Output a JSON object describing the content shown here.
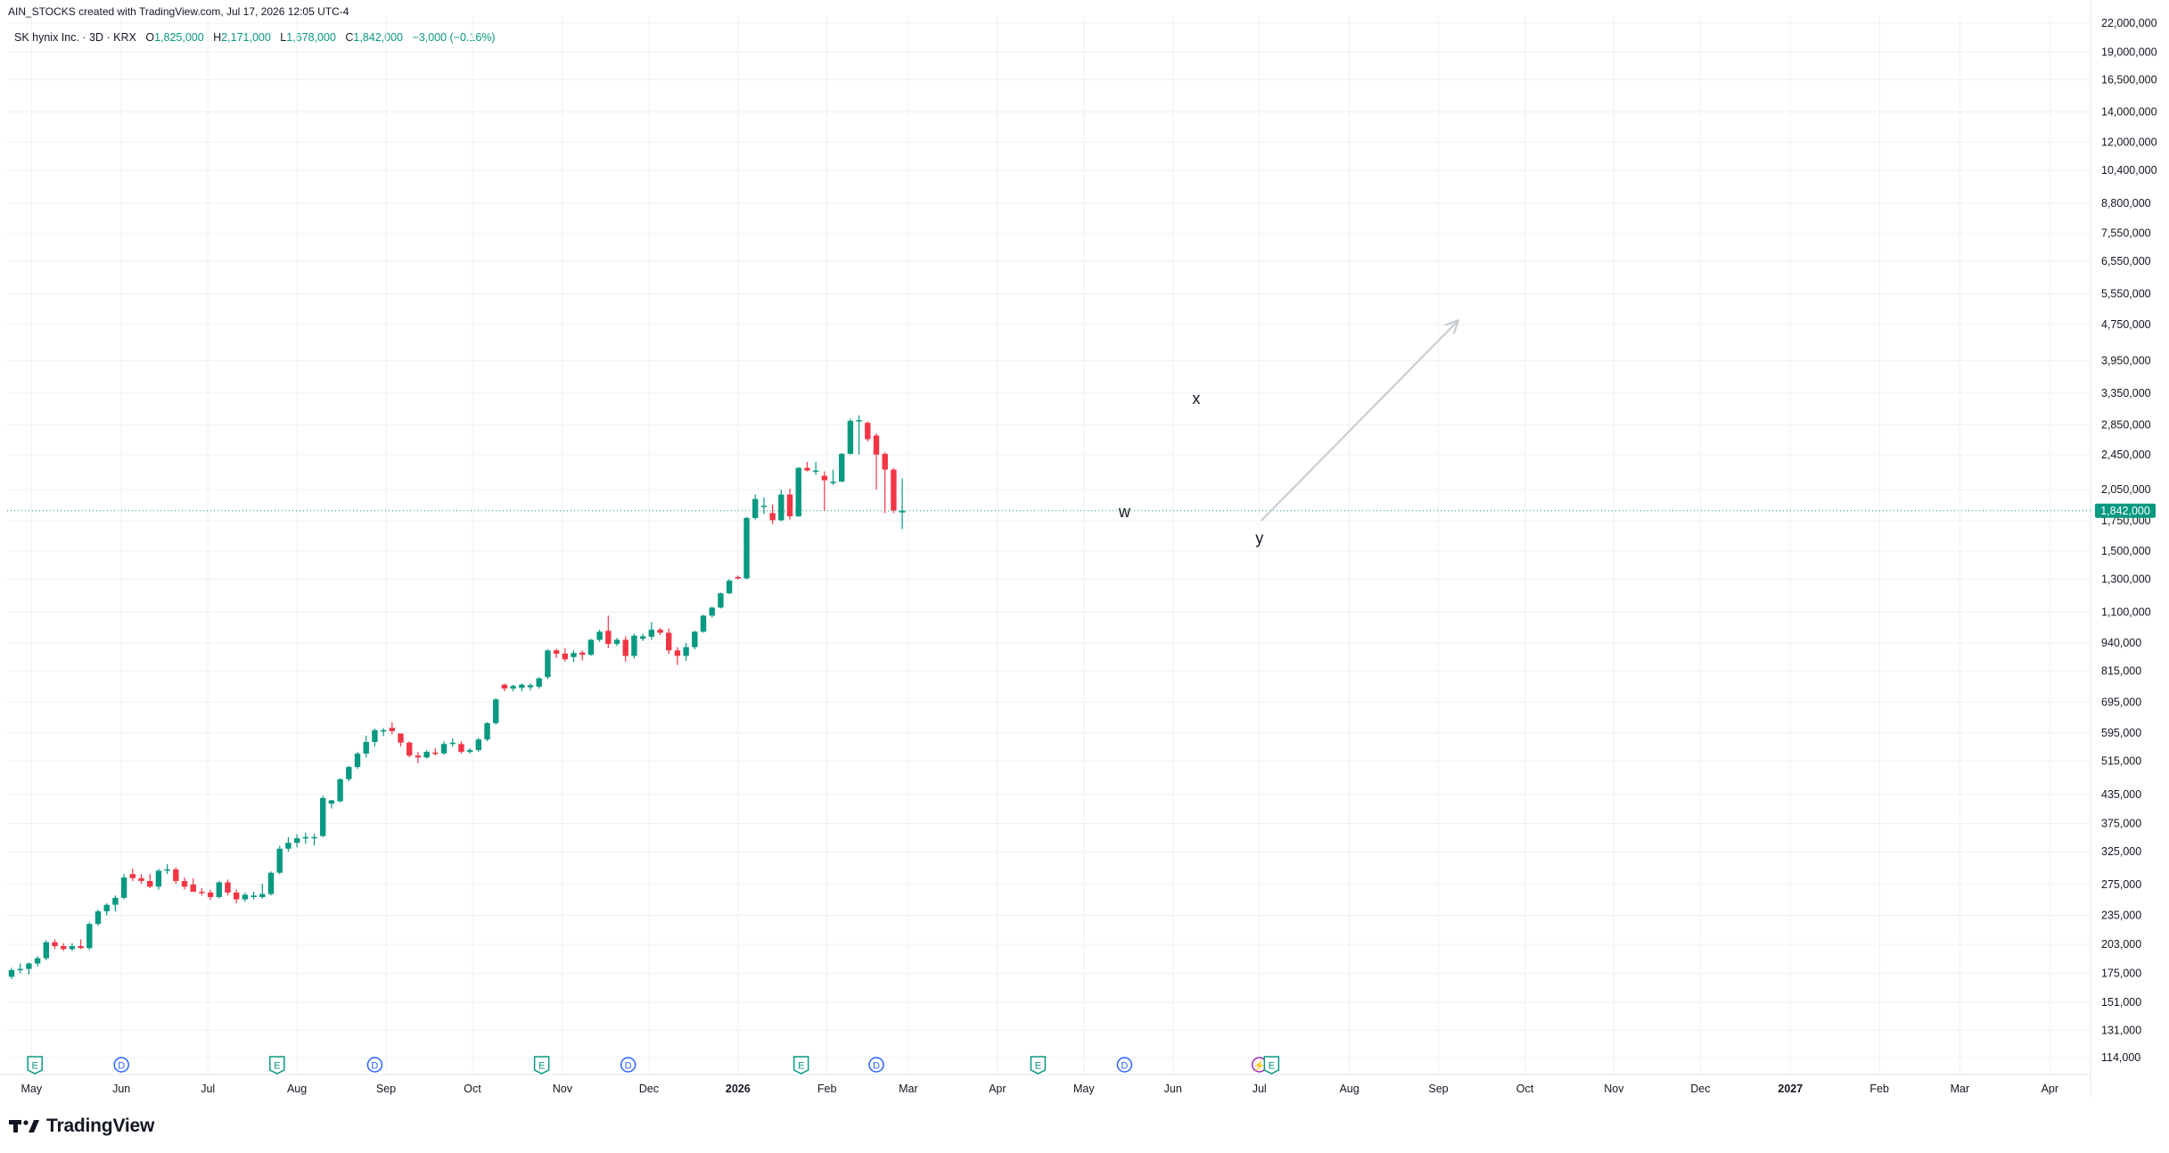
{
  "header": {
    "created_line": "AIN_STOCKS created with TradingView.com, Jul 17, 2026 12:05 UTC-4"
  },
  "legend": {
    "symbol": "SK hynix Inc. · 3D · KRX",
    "o_label": "O",
    "o_value": "1,825,000",
    "h_label": "H",
    "h_value": "2,171,000",
    "l_label": "L",
    "l_value": "1,678,000",
    "c_label": "C",
    "c_value": "1,842,000",
    "change": "−3,000 (−0.16%)"
  },
  "brand": {
    "name": "TradingView"
  },
  "colors": {
    "up": "#089981",
    "down": "#f23645",
    "grid": "#eef0f3",
    "axis_text": "#131722",
    "price_line": "#089981",
    "arrow": "#c5c9d0",
    "earnings": "#089981",
    "dividend": "#2962ff",
    "split": "#9c27b0"
  },
  "chart_data": {
    "type": "candlestick",
    "symbol": "SK hynix Inc.",
    "interval": "3D",
    "exchange": "KRX",
    "y_scale": "log",
    "ylim": [
      106000,
      23000000
    ],
    "grid": true,
    "y_ticks": [
      {
        "value": 22000000,
        "label": "22,000,000"
      },
      {
        "value": 19000000,
        "label": "19,000,000"
      },
      {
        "value": 16500000,
        "label": "16,500,000"
      },
      {
        "value": 14000000,
        "label": "14,000,000"
      },
      {
        "value": 12000000,
        "label": "12,000,000"
      },
      {
        "value": 10400000,
        "label": "10,400,000"
      },
      {
        "value": 8800000,
        "label": "8,800,000"
      },
      {
        "value": 7550000,
        "label": "7,550,000"
      },
      {
        "value": 6550000,
        "label": "6,550,000"
      },
      {
        "value": 5550000,
        "label": "5,550,000"
      },
      {
        "value": 4750000,
        "label": "4,750,000"
      },
      {
        "value": 3950000,
        "label": "3,950,000"
      },
      {
        "value": 3350000,
        "label": "3,350,000"
      },
      {
        "value": 2850000,
        "label": "2,850,000"
      },
      {
        "value": 2450000,
        "label": "2,450,000"
      },
      {
        "value": 2050000,
        "label": "2,050,000"
      },
      {
        "value": 1750000,
        "label": "1,750,000"
      },
      {
        "value": 1500000,
        "label": "1,500,000"
      },
      {
        "value": 1300000,
        "label": "1,300,000"
      },
      {
        "value": 1100000,
        "label": "1,100,000"
      },
      {
        "value": 940000,
        "label": "940,000"
      },
      {
        "value": 815000,
        "label": "815,000"
      },
      {
        "value": 695000,
        "label": "695,000"
      },
      {
        "value": 595000,
        "label": "595,000"
      },
      {
        "value": 515000,
        "label": "515,000"
      },
      {
        "value": 435000,
        "label": "435,000"
      },
      {
        "value": 375000,
        "label": "375,000"
      },
      {
        "value": 325000,
        "label": "325,000"
      },
      {
        "value": 275000,
        "label": "275,000"
      },
      {
        "value": 235000,
        "label": "235,000"
      },
      {
        "value": 203000,
        "label": "203,000"
      },
      {
        "value": 175000,
        "label": "175,000"
      },
      {
        "value": 151000,
        "label": "151,000"
      },
      {
        "value": 131000,
        "label": "131,000"
      },
      {
        "value": 114000,
        "label": "114,000"
      }
    ],
    "x_ticks": [
      {
        "i": 2.3,
        "label": "May"
      },
      {
        "i": 12.7,
        "label": "Jun"
      },
      {
        "i": 22.7,
        "label": "Jul"
      },
      {
        "i": 33.0,
        "label": "Aug"
      },
      {
        "i": 43.3,
        "label": "Sep"
      },
      {
        "i": 53.3,
        "label": "Oct"
      },
      {
        "i": 63.7,
        "label": "Nov"
      },
      {
        "i": 73.7,
        "label": "Dec",
        "bold": false
      },
      {
        "i": 84.0,
        "label": "2026",
        "bold": true
      },
      {
        "i": 94.3,
        "label": "Feb"
      },
      {
        "i": 103.7,
        "label": "Mar"
      },
      {
        "i": 114.0,
        "label": "Apr"
      },
      {
        "i": 124.0,
        "label": "May"
      },
      {
        "i": 134.3,
        "label": "Jun"
      },
      {
        "i": 144.3,
        "label": "Jul"
      },
      {
        "i": 154.7,
        "label": "Aug"
      },
      {
        "i": 165.0,
        "label": "Sep"
      },
      {
        "i": 175.0,
        "label": "Oct"
      },
      {
        "i": 185.3,
        "label": "Nov"
      },
      {
        "i": 195.3,
        "label": "Dec"
      },
      {
        "i": 205.7,
        "label": "2027",
        "bold": true
      },
      {
        "i": 216.0,
        "label": "Feb"
      },
      {
        "i": 225.3,
        "label": "Mar"
      },
      {
        "i": 235.7,
        "label": "Apr"
      }
    ],
    "candles": [
      {
        "o": 172000,
        "h": 180000,
        "l": 170000,
        "c": 178000
      },
      {
        "o": 178000,
        "h": 184000,
        "l": 175000,
        "c": 179000
      },
      {
        "o": 179000,
        "h": 185000,
        "l": 174000,
        "c": 184000
      },
      {
        "o": 184000,
        "h": 191000,
        "l": 181000,
        "c": 189000
      },
      {
        "o": 189000,
        "h": 207000,
        "l": 187000,
        "c": 205000
      },
      {
        "o": 205000,
        "h": 208000,
        "l": 198000,
        "c": 201000
      },
      {
        "o": 201000,
        "h": 204000,
        "l": 196000,
        "c": 198000
      },
      {
        "o": 198000,
        "h": 204000,
        "l": 196000,
        "c": 201000
      },
      {
        "o": 201000,
        "h": 208000,
        "l": 198000,
        "c": 199000
      },
      {
        "o": 199000,
        "h": 227000,
        "l": 197000,
        "c": 225000
      },
      {
        "o": 225000,
        "h": 242000,
        "l": 223000,
        "c": 240000
      },
      {
        "o": 240000,
        "h": 250000,
        "l": 235000,
        "c": 248000
      },
      {
        "o": 248000,
        "h": 260000,
        "l": 240000,
        "c": 257000
      },
      {
        "o": 257000,
        "h": 290000,
        "l": 255000,
        "c": 285000
      },
      {
        "o": 290000,
        "h": 298000,
        "l": 280000,
        "c": 284000
      },
      {
        "o": 284000,
        "h": 290000,
        "l": 276000,
        "c": 280000
      },
      {
        "o": 280000,
        "h": 290000,
        "l": 270000,
        "c": 272000
      },
      {
        "o": 272000,
        "h": 298000,
        "l": 268000,
        "c": 295000
      },
      {
        "o": 295000,
        "h": 305000,
        "l": 290000,
        "c": 297000
      },
      {
        "o": 297000,
        "h": 300000,
        "l": 276000,
        "c": 280000
      },
      {
        "o": 280000,
        "h": 285000,
        "l": 268000,
        "c": 272000
      },
      {
        "o": 275000,
        "h": 284000,
        "l": 265000,
        "c": 265000
      },
      {
        "o": 265000,
        "h": 270000,
        "l": 260000,
        "c": 264000
      },
      {
        "o": 264000,
        "h": 268000,
        "l": 254000,
        "c": 258000
      },
      {
        "o": 258000,
        "h": 280000,
        "l": 256000,
        "c": 278000
      },
      {
        "o": 278000,
        "h": 282000,
        "l": 260000,
        "c": 264000
      },
      {
        "o": 264000,
        "h": 268000,
        "l": 250000,
        "c": 255000
      },
      {
        "o": 255000,
        "h": 264000,
        "l": 252000,
        "c": 261000
      },
      {
        "o": 258000,
        "h": 265000,
        "l": 255000,
        "c": 260000
      },
      {
        "o": 258000,
        "h": 276000,
        "l": 256000,
        "c": 262000
      },
      {
        "o": 262000,
        "h": 294000,
        "l": 260000,
        "c": 292000
      },
      {
        "o": 292000,
        "h": 335000,
        "l": 290000,
        "c": 330000
      },
      {
        "o": 330000,
        "h": 350000,
        "l": 325000,
        "c": 340000
      },
      {
        "o": 340000,
        "h": 355000,
        "l": 332000,
        "c": 348000
      },
      {
        "o": 348000,
        "h": 358000,
        "l": 338000,
        "c": 350000
      },
      {
        "o": 348000,
        "h": 356000,
        "l": 335000,
        "c": 350000
      },
      {
        "o": 352000,
        "h": 432000,
        "l": 350000,
        "c": 427000
      },
      {
        "o": 415000,
        "h": 423000,
        "l": 405000,
        "c": 422000
      },
      {
        "o": 420000,
        "h": 472000,
        "l": 418000,
        "c": 470000
      },
      {
        "o": 470000,
        "h": 503000,
        "l": 465000,
        "c": 500000
      },
      {
        "o": 500000,
        "h": 540000,
        "l": 495000,
        "c": 535000
      },
      {
        "o": 535000,
        "h": 586000,
        "l": 525000,
        "c": 568000
      },
      {
        "o": 568000,
        "h": 608000,
        "l": 555000,
        "c": 603000
      },
      {
        "o": 603000,
        "h": 610000,
        "l": 585000,
        "c": 603000
      },
      {
        "o": 610000,
        "h": 628000,
        "l": 590000,
        "c": 600000
      },
      {
        "o": 593000,
        "h": 578000,
        "l": 555000,
        "c": 566000
      },
      {
        "o": 566000,
        "h": 570000,
        "l": 525000,
        "c": 530000
      },
      {
        "o": 530000,
        "h": 540000,
        "l": 510000,
        "c": 525000
      },
      {
        "o": 525000,
        "h": 545000,
        "l": 522000,
        "c": 540000
      },
      {
        "o": 538000,
        "h": 550000,
        "l": 530000,
        "c": 536000
      },
      {
        "o": 536000,
        "h": 570000,
        "l": 532000,
        "c": 562000
      },
      {
        "o": 562000,
        "h": 578000,
        "l": 555000,
        "c": 566000
      },
      {
        "o": 562000,
        "h": 570000,
        "l": 535000,
        "c": 540000
      },
      {
        "o": 540000,
        "h": 550000,
        "l": 535000,
        "c": 545000
      },
      {
        "o": 545000,
        "h": 580000,
        "l": 540000,
        "c": 575000
      },
      {
        "o": 575000,
        "h": 628000,
        "l": 570000,
        "c": 625000
      },
      {
        "o": 625000,
        "h": 710000,
        "l": 620000,
        "c": 705000
      },
      {
        "o": 760000,
        "h": 765000,
        "l": 735000,
        "c": 745000
      },
      {
        "o": 745000,
        "h": 760000,
        "l": 735000,
        "c": 755000
      },
      {
        "o": 748000,
        "h": 765000,
        "l": 735000,
        "c": 760000
      },
      {
        "o": 750000,
        "h": 765000,
        "l": 738000,
        "c": 758000
      },
      {
        "o": 752000,
        "h": 790000,
        "l": 745000,
        "c": 785000
      },
      {
        "o": 790000,
        "h": 910000,
        "l": 782000,
        "c": 905000
      },
      {
        "o": 905000,
        "h": 912000,
        "l": 870000,
        "c": 890000
      },
      {
        "o": 890000,
        "h": 915000,
        "l": 855000,
        "c": 865000
      },
      {
        "o": 875000,
        "h": 905000,
        "l": 852000,
        "c": 893000
      },
      {
        "o": 895000,
        "h": 905000,
        "l": 860000,
        "c": 885000
      },
      {
        "o": 885000,
        "h": 960000,
        "l": 880000,
        "c": 955000
      },
      {
        "o": 955000,
        "h": 1005000,
        "l": 945000,
        "c": 995000
      },
      {
        "o": 1000000,
        "h": 1080000,
        "l": 915000,
        "c": 935000
      },
      {
        "o": 935000,
        "h": 965000,
        "l": 925000,
        "c": 955000
      },
      {
        "o": 955000,
        "h": 972000,
        "l": 855000,
        "c": 880000
      },
      {
        "o": 880000,
        "h": 985000,
        "l": 868000,
        "c": 975000
      },
      {
        "o": 960000,
        "h": 985000,
        "l": 950000,
        "c": 972000
      },
      {
        "o": 970000,
        "h": 1045000,
        "l": 955000,
        "c": 1005000
      },
      {
        "o": 1005000,
        "h": 1015000,
        "l": 978000,
        "c": 990000
      },
      {
        "o": 990000,
        "h": 1012000,
        "l": 888000,
        "c": 905000
      },
      {
        "o": 905000,
        "h": 920000,
        "l": 840000,
        "c": 880000
      },
      {
        "o": 880000,
        "h": 940000,
        "l": 858000,
        "c": 920000
      },
      {
        "o": 920000,
        "h": 1000000,
        "l": 910000,
        "c": 995000
      },
      {
        "o": 995000,
        "h": 1085000,
        "l": 990000,
        "c": 1080000
      },
      {
        "o": 1080000,
        "h": 1130000,
        "l": 1070000,
        "c": 1125000
      },
      {
        "o": 1125000,
        "h": 1215000,
        "l": 1120000,
        "c": 1210000
      },
      {
        "o": 1210000,
        "h": 1300000,
        "l": 1205000,
        "c": 1290000
      },
      {
        "o": 1315000,
        "h": 1325000,
        "l": 1298000,
        "c": 1305000
      },
      {
        "o": 1305000,
        "h": 1785000,
        "l": 1300000,
        "c": 1775000
      },
      {
        "o": 1775000,
        "h": 2000000,
        "l": 1760000,
        "c": 1955000
      },
      {
        "o": 1880000,
        "h": 1970000,
        "l": 1810000,
        "c": 1890000
      },
      {
        "o": 1820000,
        "h": 1900000,
        "l": 1720000,
        "c": 1755000
      },
      {
        "o": 1755000,
        "h": 2050000,
        "l": 1745000,
        "c": 2000000
      },
      {
        "o": 2000000,
        "h": 2060000,
        "l": 1760000,
        "c": 1790000
      },
      {
        "o": 1790000,
        "h": 2300000,
        "l": 1785000,
        "c": 2290000
      },
      {
        "o": 2290000,
        "h": 2360000,
        "l": 2250000,
        "c": 2260000
      },
      {
        "o": 2250000,
        "h": 2360000,
        "l": 2210000,
        "c": 2260000
      },
      {
        "o": 2200000,
        "h": 2250000,
        "l": 1840000,
        "c": 2150000
      },
      {
        "o": 2120000,
        "h": 2270000,
        "l": 2100000,
        "c": 2135000
      },
      {
        "o": 2135000,
        "h": 2470000,
        "l": 2130000,
        "c": 2460000
      },
      {
        "o": 2460000,
        "h": 2940000,
        "l": 2450000,
        "c": 2910000
      },
      {
        "o": 2900000,
        "h": 2990000,
        "l": 2450000,
        "c": 2920000
      },
      {
        "o": 2880000,
        "h": 2900000,
        "l": 2620000,
        "c": 2650000
      },
      {
        "o": 2700000,
        "h": 2730000,
        "l": 2050000,
        "c": 2450000
      },
      {
        "o": 2460000,
        "h": 2480000,
        "l": 1820000,
        "c": 2270000
      },
      {
        "o": 2270000,
        "h": 2290000,
        "l": 1820000,
        "c": 1845000
      },
      {
        "o": 1825000,
        "h": 2171000,
        "l": 1678000,
        "c": 1842000
      }
    ],
    "current_price": {
      "value": 1842000,
      "label": "1,842,000"
    },
    "annotations": [
      {
        "text": "w",
        "i": 128.7,
        "price": 1780000
      },
      {
        "text": "x",
        "i": 137.0,
        "price": 3170000
      },
      {
        "text": "y",
        "i": 144.3,
        "price": 1560000
      }
    ],
    "projection_arrow": {
      "from": {
        "i": 144.5,
        "price": 1750000
      },
      "to": {
        "i": 167.3,
        "price": 4850000
      }
    },
    "events": [
      {
        "type": "earnings",
        "i": 2.7,
        "label": "E"
      },
      {
        "type": "dividend",
        "i": 12.7,
        "label": "D"
      },
      {
        "type": "earnings",
        "i": 30.7,
        "label": "E"
      },
      {
        "type": "dividend",
        "i": 42.0,
        "label": "D"
      },
      {
        "type": "earnings",
        "i": 61.3,
        "label": "E"
      },
      {
        "type": "dividend",
        "i": 71.3,
        "label": "D"
      },
      {
        "type": "earnings",
        "i": 91.3,
        "label": "E"
      },
      {
        "type": "dividend",
        "i": 100.0,
        "label": "D"
      },
      {
        "type": "earnings",
        "i": 118.7,
        "label": "E"
      },
      {
        "type": "dividend",
        "i": 128.7,
        "label": "D"
      },
      {
        "type": "split",
        "i": 144.3,
        "label": "⚡"
      },
      {
        "type": "earnings",
        "i": 145.7,
        "label": "E"
      }
    ]
  }
}
